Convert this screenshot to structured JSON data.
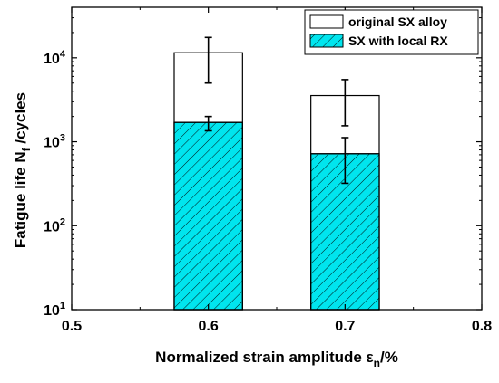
{
  "chart_data": {
    "type": "bar",
    "yscale": "log",
    "xlabel": {
      "main": "Normalized strain amplitude ε",
      "sub": "n",
      "tail": "/%"
    },
    "ylabel": {
      "main": "Fatigue life N",
      "sub": "f",
      "tail": " /cycles"
    },
    "xlim": [
      0.5,
      0.8
    ],
    "ylim": [
      10,
      40000
    ],
    "x_ticks": [
      {
        "value": 0.5,
        "label": "0.5"
      },
      {
        "value": 0.6,
        "label": "0.6"
      },
      {
        "value": 0.7,
        "label": "0.7"
      },
      {
        "value": 0.8,
        "label": "0.8"
      }
    ],
    "y_ticks": [
      {
        "value": 10,
        "base": "10",
        "exp": "1"
      },
      {
        "value": 100,
        "base": "10",
        "exp": "2"
      },
      {
        "value": 1000,
        "base": "10",
        "exp": "3"
      },
      {
        "value": 10000,
        "base": "10",
        "exp": "4"
      }
    ],
    "legend_position": "top-right",
    "series": [
      {
        "name": "original SX alloy",
        "fill": "#ffffff",
        "hatch": false,
        "x": [
          0.6,
          0.7
        ],
        "values": [
          11500,
          3550
        ],
        "error_low": [
          5000,
          1550
        ],
        "error_high": [
          17500,
          5500
        ]
      },
      {
        "name": "SX with local RX",
        "fill": "#00e5ee",
        "hatch": true,
        "x": [
          0.6,
          0.7
        ],
        "values": [
          1700,
          720
        ],
        "error_low": [
          1350,
          320
        ],
        "error_high": [
          2000,
          1120
        ]
      }
    ]
  }
}
